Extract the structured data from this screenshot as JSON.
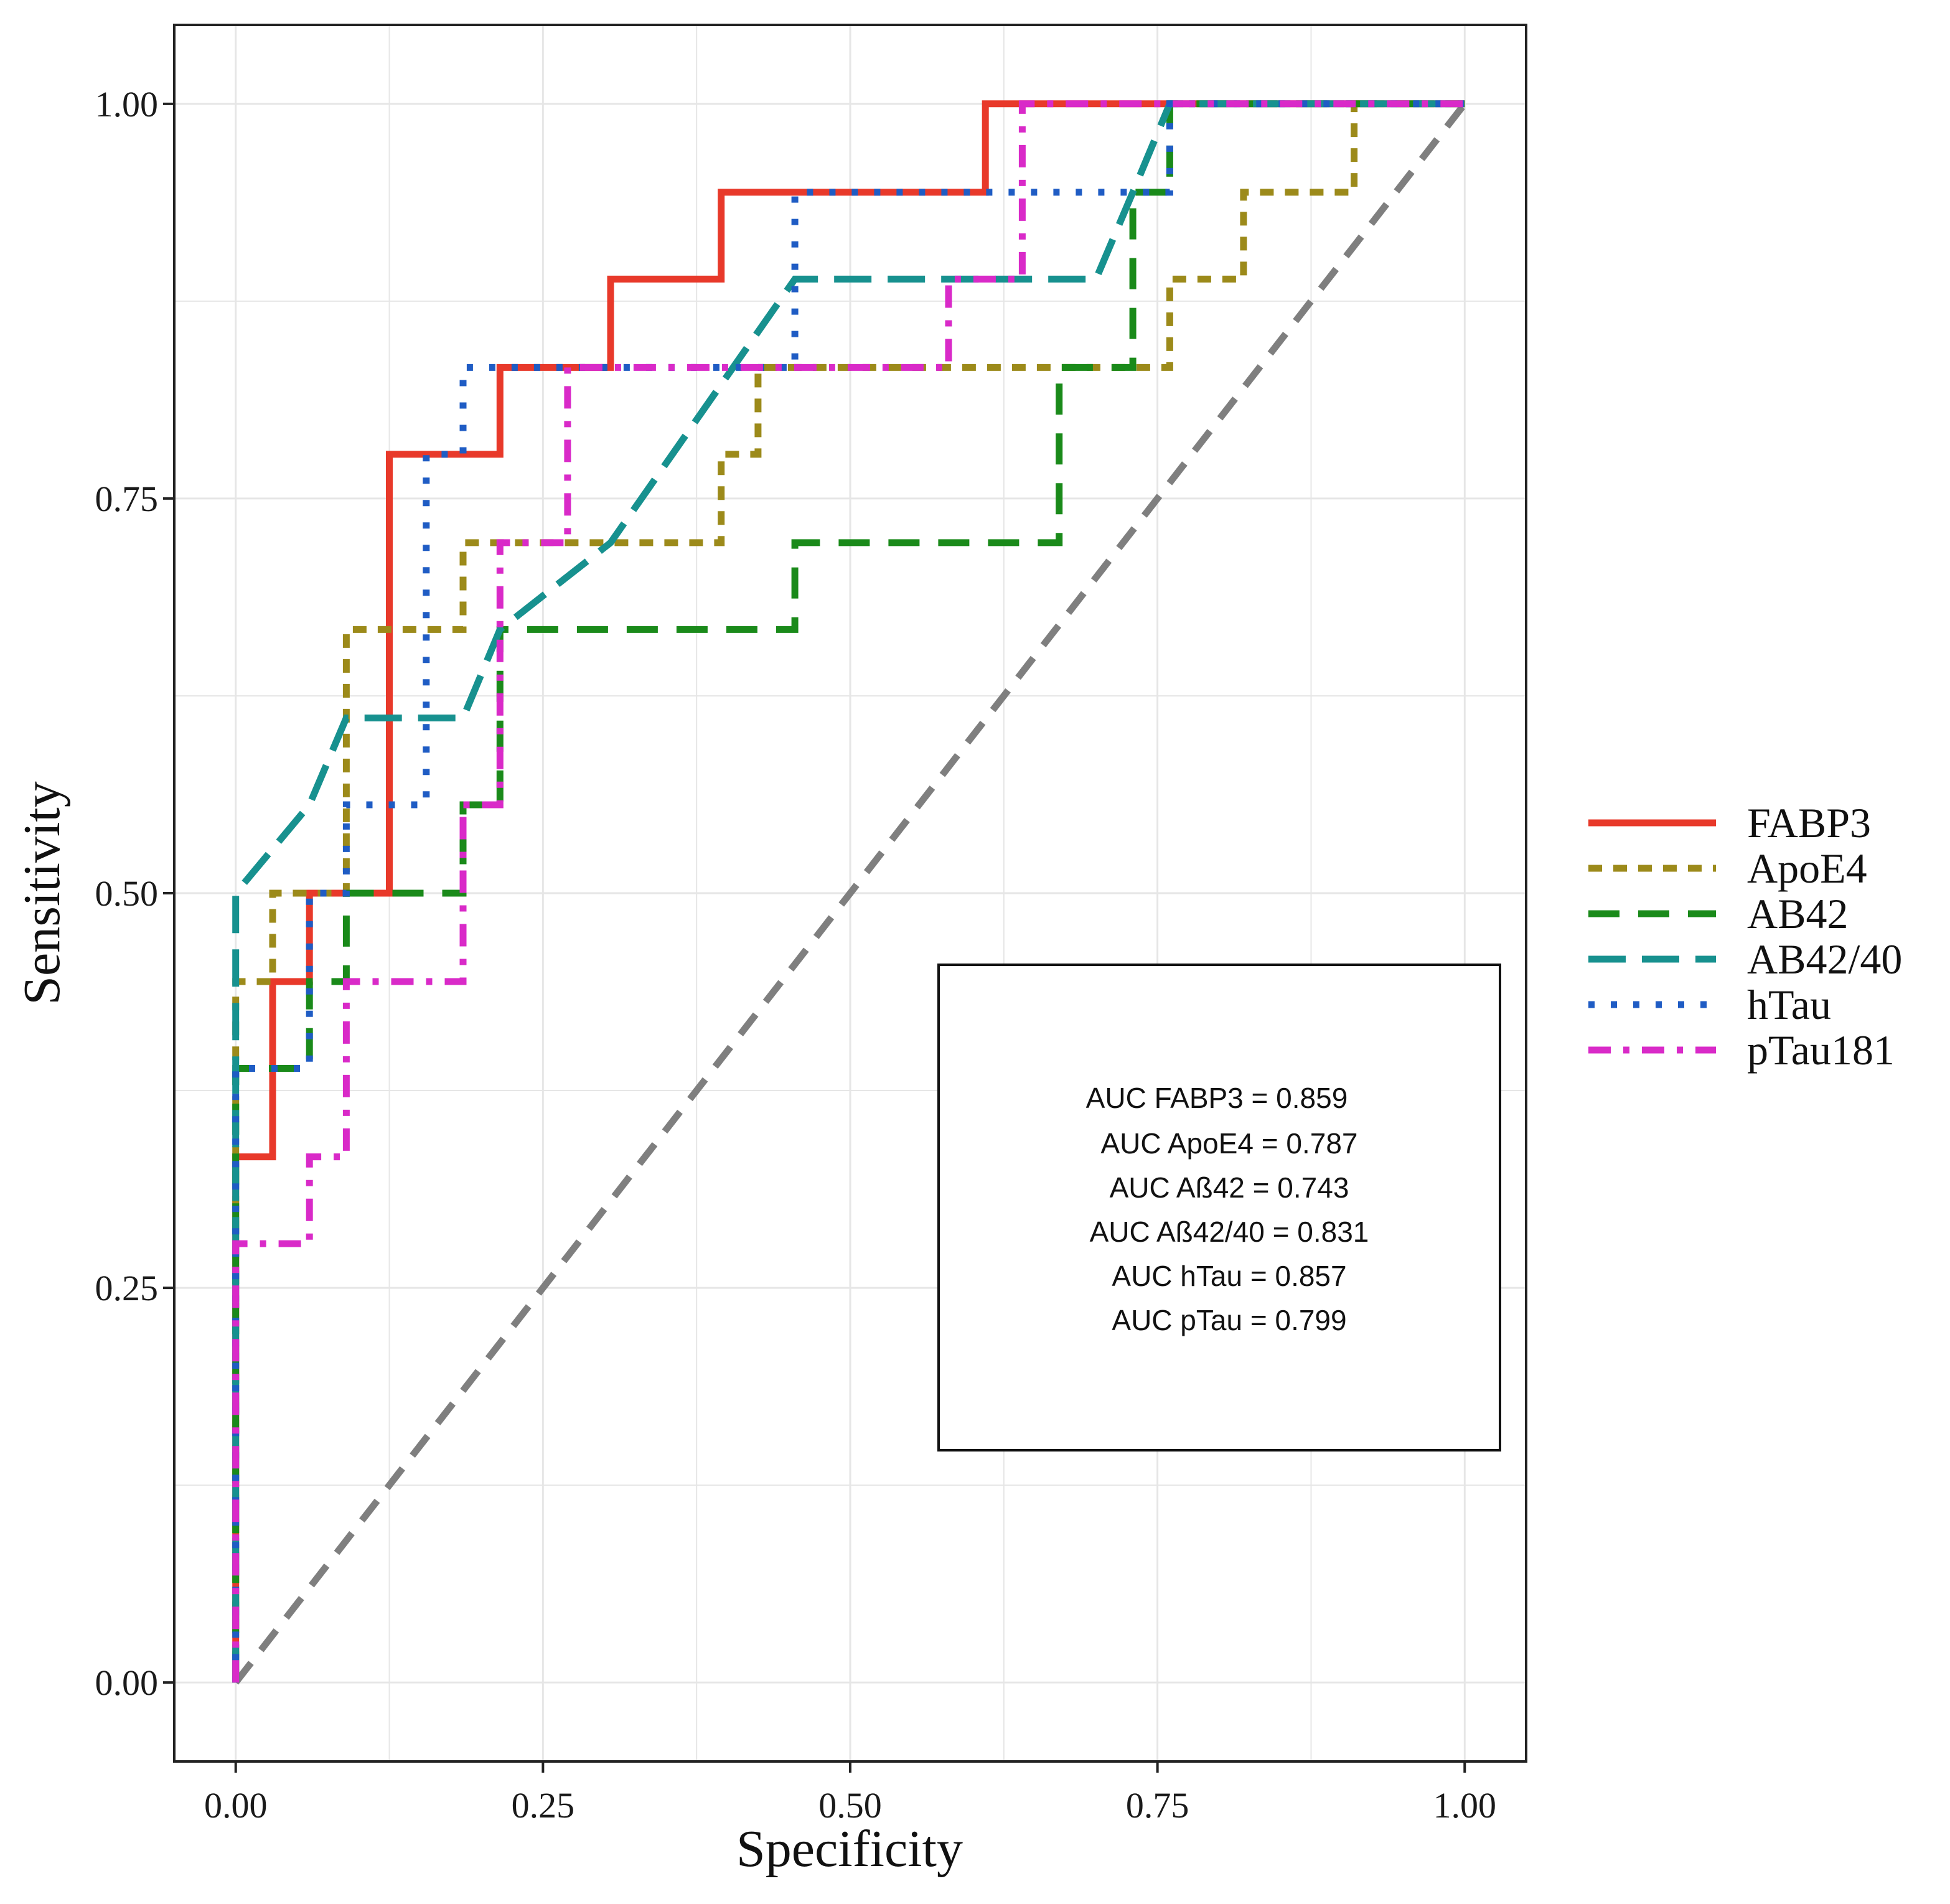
{
  "chart_data": {
    "type": "line",
    "title": "",
    "xlabel": "Specificity",
    "ylabel": "Sensitivity",
    "xlim": [
      -0.05,
      1.05
    ],
    "ylim": [
      -0.05,
      1.05
    ],
    "xticks": [
      0.0,
      0.25,
      0.5,
      0.75,
      1.0
    ],
    "xtick_labels": [
      "0.00",
      "0.25",
      "0.50",
      "0.75",
      "1.00"
    ],
    "yticks": [
      0.0,
      0.25,
      0.5,
      0.75,
      1.0
    ],
    "ytick_labels": [
      "0.00",
      "0.25",
      "0.50",
      "0.75",
      "1.00"
    ],
    "grid": true,
    "legend_position": "right",
    "reference_line": {
      "x": [
        0,
        1
      ],
      "y": [
        0,
        1
      ],
      "color": "#7f7f7f",
      "style": "dashed"
    },
    "series": [
      {
        "name": "FABP3",
        "color": "#e8392a",
        "style": "solid",
        "x": [
          0,
          0,
          0.03,
          0.03,
          0.06,
          0.06,
          0.125,
          0.125,
          0.215,
          0.215,
          0.305,
          0.305,
          0.395,
          0.395,
          0.61,
          0.61,
          1.0
        ],
        "y": [
          0,
          0.333,
          0.333,
          0.444,
          0.444,
          0.5,
          0.5,
          0.778,
          0.778,
          0.833,
          0.833,
          0.889,
          0.889,
          0.944,
          0.944,
          1.0,
          1.0
        ]
      },
      {
        "name": "ApoE4",
        "color": "#9c8a1a",
        "style": "dashed",
        "x": [
          0,
          0,
          0.03,
          0.03,
          0.09,
          0.09,
          0.185,
          0.185,
          0.395,
          0.395,
          0.425,
          0.425,
          0.76,
          0.76,
          0.82,
          0.82,
          0.91,
          0.91,
          1.0
        ],
        "y": [
          0,
          0.444,
          0.444,
          0.5,
          0.5,
          0.667,
          0.667,
          0.722,
          0.722,
          0.778,
          0.778,
          0.833,
          0.833,
          0.889,
          0.889,
          0.944,
          0.944,
          1.0,
          1.0
        ]
      },
      {
        "name": "AB42",
        "color": "#1a8a1a",
        "style": "longdash",
        "x": [
          0,
          0,
          0.06,
          0.06,
          0.09,
          0.09,
          0.185,
          0.185,
          0.215,
          0.215,
          0.455,
          0.455,
          0.67,
          0.67,
          0.73,
          0.73,
          0.76,
          0.76,
          1.0
        ],
        "y": [
          0,
          0.389,
          0.389,
          0.444,
          0.444,
          0.5,
          0.5,
          0.556,
          0.556,
          0.667,
          0.667,
          0.722,
          0.722,
          0.833,
          0.833,
          0.944,
          0.944,
          1.0,
          1.0
        ]
      },
      {
        "name": "AB42/40",
        "color": "#17918f",
        "style": "twodash",
        "x": [
          0,
          0,
          0.06,
          0.09,
          0.185,
          0.215,
          0.305,
          0.455,
          0.7,
          0.73,
          0.76,
          1.0
        ],
        "y": [
          0,
          0.5,
          0.556,
          0.611,
          0.611,
          0.667,
          0.722,
          0.889,
          0.889,
          0.944,
          1.0,
          1.0
        ]
      },
      {
        "name": "hTau",
        "color": "#1f5cc4",
        "style": "dotted",
        "x": [
          0,
          0,
          0.06,
          0.06,
          0.09,
          0.09,
          0.155,
          0.155,
          0.185,
          0.185,
          0.455,
          0.455,
          0.64,
          0.64,
          0.73,
          0.73,
          0.76,
          0.76,
          1.0
        ],
        "y": [
          0,
          0.389,
          0.389,
          0.5,
          0.5,
          0.556,
          0.556,
          0.778,
          0.778,
          0.833,
          0.833,
          0.944,
          0.944,
          0.944,
          0.944,
          0.944,
          0.944,
          1.0,
          1.0
        ]
      },
      {
        "name": "pTau181",
        "color": "#d92ac8",
        "style": "dotdash",
        "x": [
          0,
          0,
          0.06,
          0.06,
          0.09,
          0.09,
          0.185,
          0.185,
          0.215,
          0.215,
          0.27,
          0.27,
          0.58,
          0.58,
          0.64,
          0.64,
          1.0
        ],
        "y": [
          0,
          0.278,
          0.278,
          0.333,
          0.333,
          0.444,
          0.444,
          0.556,
          0.556,
          0.722,
          0.722,
          0.833,
          0.833,
          0.889,
          0.889,
          1.0,
          1.0
        ]
      }
    ],
    "annotation_box": {
      "lines": [
        "AUC FABP3 = 0.859",
        "AUC ApoE4 = 0.787",
        "AUC Aß42 = 0.743",
        "AUC Aß42/40 = 0.831",
        "AUC hTau = 0.857",
        "AUC pTau = 0.799"
      ]
    }
  }
}
